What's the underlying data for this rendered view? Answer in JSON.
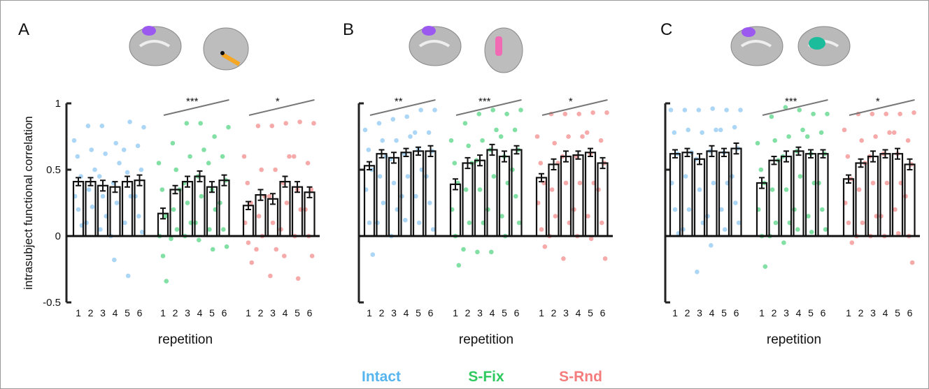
{
  "chart_data": [
    {
      "type": "bar",
      "label": "A",
      "y_label": "intrasubject functional correlation",
      "x_label": "repetition",
      "categories": [
        "1",
        "2",
        "3",
        "4",
        "5",
        "6"
      ],
      "ylim": [
        -0.5,
        1
      ],
      "yticks": [
        -0.5,
        0,
        0.5,
        1
      ],
      "ytick_labels": true,
      "series": [
        {
          "name": "Intact",
          "color": "#56b4ee",
          "point_color": "#acd6f6",
          "values": [
            0.41,
            0.41,
            0.38,
            0.37,
            0.41,
            0.42
          ],
          "errors": [
            0.03,
            0.03,
            0.04,
            0.04,
            0.04,
            0.04
          ],
          "points": [
            [
              0.72,
              0.6,
              0.45,
              0.3,
              0.2,
              0.08
            ],
            [
              0.83,
              0.65,
              0.5,
              0.35,
              0.22,
              0.1
            ],
            [
              0.83,
              0.62,
              0.45,
              0.3,
              0.15,
              0.05
            ],
            [
              0.7,
              0.55,
              0.4,
              0.25,
              0.0,
              -0.18
            ],
            [
              0.86,
              0.65,
              0.48,
              0.3,
              0.1,
              -0.3
            ],
            [
              0.82,
              0.68,
              0.5,
              0.3,
              0.15,
              0.03
            ]
          ]
        },
        {
          "name": "S-Fix",
          "color": "#2fc95f",
          "point_color": "#82e0a4",
          "values": [
            0.17,
            0.35,
            0.41,
            0.45,
            0.37,
            0.42
          ],
          "errors": [
            0.04,
            0.03,
            0.04,
            0.04,
            0.04,
            0.04
          ],
          "significance": "***",
          "points": [
            [
              0.55,
              0.35,
              0.15,
              0.0,
              -0.15,
              -0.34
            ],
            [
              0.7,
              0.5,
              0.35,
              0.2,
              0.05,
              -0.02
            ],
            [
              0.85,
              0.6,
              0.4,
              0.25,
              0.1,
              0.0
            ],
            [
              0.85,
              0.65,
              0.45,
              0.3,
              0.1,
              -0.03
            ],
            [
              0.75,
              0.55,
              0.35,
              0.2,
              0.05,
              -0.1
            ],
            [
              0.82,
              0.6,
              0.42,
              0.25,
              0.05,
              -0.08
            ]
          ]
        },
        {
          "name": "S-Rnd",
          "color": "#f47c7c",
          "point_color": "#f6aaaa",
          "values": [
            0.23,
            0.31,
            0.28,
            0.41,
            0.37,
            0.33
          ],
          "errors": [
            0.03,
            0.04,
            0.04,
            0.04,
            0.04,
            0.04
          ],
          "significance": "*",
          "points": [
            [
              0.6,
              0.4,
              0.25,
              0.1,
              -0.05,
              -0.2
            ],
            [
              0.83,
              0.5,
              0.3,
              0.15,
              0.0,
              -0.1
            ],
            [
              0.83,
              0.5,
              0.3,
              0.1,
              -0.1,
              -0.3
            ],
            [
              0.85,
              0.6,
              0.4,
              0.25,
              0.05,
              -0.15
            ],
            [
              0.86,
              0.6,
              0.35,
              0.2,
              0.0,
              -0.32
            ],
            [
              0.85,
              0.55,
              0.35,
              0.2,
              0.0,
              -0.15
            ]
          ]
        }
      ]
    },
    {
      "type": "bar",
      "label": "B",
      "x_label": "repetition",
      "categories": [
        "1",
        "2",
        "3",
        "4",
        "5",
        "6"
      ],
      "ylim": [
        -0.5,
        1
      ],
      "yticks": [
        -0.5,
        0,
        0.5,
        1
      ],
      "ytick_labels": false,
      "series": [
        {
          "name": "Intact",
          "color": "#56b4ee",
          "point_color": "#acd6f6",
          "values": [
            0.53,
            0.62,
            0.59,
            0.63,
            0.64,
            0.64
          ],
          "errors": [
            0.03,
            0.03,
            0.04,
            0.03,
            0.03,
            0.04
          ],
          "significance": "**",
          "points": [
            [
              0.8,
              0.65,
              0.5,
              0.35,
              0.1,
              -0.14
            ],
            [
              0.85,
              0.72,
              0.6,
              0.45,
              0.25,
              0.1
            ],
            [
              0.88,
              0.72,
              0.58,
              0.4,
              0.2,
              0.0
            ],
            [
              0.9,
              0.75,
              0.62,
              0.45,
              0.3,
              0.12
            ],
            [
              0.95,
              0.78,
              0.65,
              0.5,
              0.3,
              0.1
            ],
            [
              0.95,
              0.78,
              0.64,
              0.45,
              0.25,
              0.05
            ]
          ]
        },
        {
          "name": "S-Fix",
          "color": "#2fc95f",
          "point_color": "#82e0a4",
          "values": [
            0.39,
            0.55,
            0.57,
            0.65,
            0.6,
            0.65
          ],
          "errors": [
            0.04,
            0.04,
            0.04,
            0.04,
            0.04,
            0.03
          ],
          "significance": "***",
          "points": [
            [
              0.72,
              0.55,
              0.4,
              0.2,
              0.0,
              -0.22
            ],
            [
              0.85,
              0.68,
              0.55,
              0.35,
              0.1,
              -0.1
            ],
            [
              0.92,
              0.72,
              0.57,
              0.35,
              0.1,
              -0.12
            ],
            [
              0.95,
              0.8,
              0.65,
              0.45,
              0.2,
              -0.12
            ],
            [
              0.92,
              0.75,
              0.6,
              0.4,
              0.15,
              0.0
            ],
            [
              0.95,
              0.8,
              0.65,
              0.5,
              0.3,
              0.1
            ]
          ]
        },
        {
          "name": "S-Rnd",
          "color": "#f47c7c",
          "point_color": "#f6aaaa",
          "values": [
            0.44,
            0.54,
            0.6,
            0.61,
            0.63,
            0.55
          ],
          "errors": [
            0.03,
            0.04,
            0.04,
            0.03,
            0.03,
            0.04
          ],
          "significance": "*",
          "points": [
            [
              0.75,
              0.55,
              0.4,
              0.25,
              0.05,
              -0.08
            ],
            [
              0.92,
              0.7,
              0.55,
              0.35,
              0.15,
              0.0
            ],
            [
              0.92,
              0.75,
              0.6,
              0.4,
              0.1,
              -0.17
            ],
            [
              0.92,
              0.75,
              0.6,
              0.4,
              0.2,
              0.0
            ],
            [
              0.93,
              0.78,
              0.62,
              0.4,
              0.15,
              -0.02
            ],
            [
              0.93,
              0.72,
              0.55,
              0.35,
              0.1,
              -0.17
            ]
          ]
        }
      ]
    },
    {
      "type": "bar",
      "label": "C",
      "x_label": "repetition",
      "categories": [
        "1",
        "2",
        "3",
        "4",
        "5",
        "6"
      ],
      "ylim": [
        -0.5,
        1
      ],
      "yticks": [
        -0.5,
        0,
        0.5,
        1
      ],
      "ytick_labels": false,
      "series": [
        {
          "name": "Intact",
          "color": "#56b4ee",
          "point_color": "#acd6f6",
          "values": [
            0.62,
            0.63,
            0.58,
            0.64,
            0.63,
            0.66
          ],
          "errors": [
            0.03,
            0.03,
            0.04,
            0.04,
            0.03,
            0.04
          ],
          "points": [
            [
              0.95,
              0.78,
              0.62,
              0.4,
              0.2,
              0.02
            ],
            [
              0.95,
              0.8,
              0.63,
              0.45,
              0.2,
              0.05
            ],
            [
              0.95,
              0.78,
              0.58,
              0.35,
              0.1,
              -0.27
            ],
            [
              0.96,
              0.8,
              0.64,
              0.4,
              0.15,
              -0.07
            ],
            [
              0.95,
              0.8,
              0.63,
              0.4,
              0.2,
              0.05
            ],
            [
              0.95,
              0.82,
              0.66,
              0.45,
              0.25,
              0.1
            ]
          ]
        },
        {
          "name": "S-Fix",
          "color": "#2fc95f",
          "point_color": "#82e0a4",
          "values": [
            0.4,
            0.57,
            0.6,
            0.64,
            0.62,
            0.62
          ],
          "errors": [
            0.04,
            0.03,
            0.04,
            0.03,
            0.03,
            0.03
          ],
          "significance": "***",
          "points": [
            [
              0.7,
              0.5,
              0.4,
              0.2,
              0.0,
              -0.23
            ],
            [
              0.9,
              0.72,
              0.57,
              0.35,
              0.1,
              0.0
            ],
            [
              0.97,
              0.75,
              0.6,
              0.35,
              0.1,
              -0.05
            ],
            [
              0.95,
              0.8,
              0.64,
              0.45,
              0.2,
              0.05
            ],
            [
              0.92,
              0.75,
              0.62,
              0.4,
              0.15,
              0.03
            ],
            [
              0.92,
              0.78,
              0.62,
              0.4,
              0.2,
              0.05
            ]
          ]
        },
        {
          "name": "S-Rnd",
          "color": "#f47c7c",
          "point_color": "#f6aaaa",
          "values": [
            0.43,
            0.55,
            0.6,
            0.62,
            0.62,
            0.54
          ],
          "errors": [
            0.03,
            0.03,
            0.04,
            0.03,
            0.04,
            0.04
          ],
          "significance": "*",
          "points": [
            [
              0.8,
              0.6,
              0.43,
              0.25,
              0.1,
              -0.05
            ],
            [
              0.92,
              0.72,
              0.55,
              0.35,
              0.1,
              0.0
            ],
            [
              0.92,
              0.75,
              0.6,
              0.4,
              0.15,
              0.0
            ],
            [
              0.92,
              0.78,
              0.62,
              0.4,
              0.15,
              0.0
            ],
            [
              0.92,
              0.78,
              0.62,
              0.4,
              0.2,
              0.02
            ],
            [
              0.93,
              0.72,
              0.54,
              0.3,
              0.0,
              -0.2
            ]
          ]
        }
      ]
    }
  ]
}
